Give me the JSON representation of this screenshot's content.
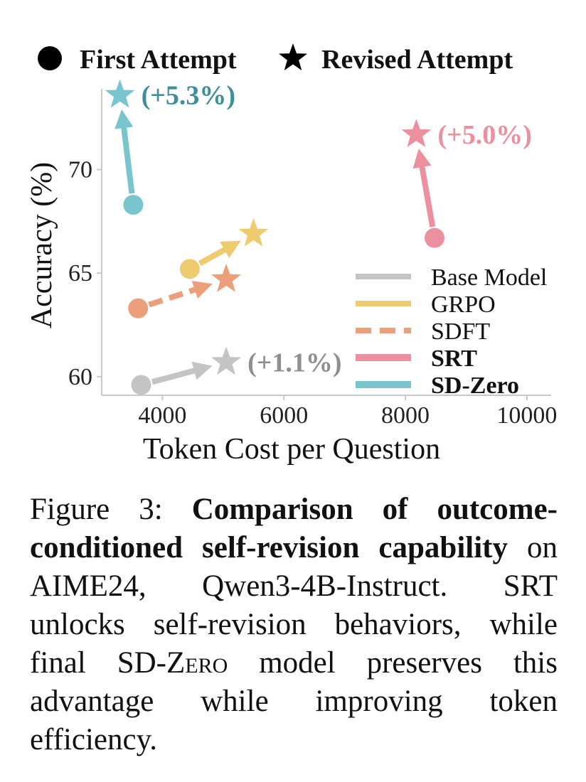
{
  "chart_data": {
    "type": "scatter",
    "xlabel": "Token Cost per Question",
    "ylabel": "Accuracy (%)",
    "xlim": [
      3000,
      10400
    ],
    "ylim": [
      59.1,
      73.9
    ],
    "xticks": [
      4000,
      6000,
      8000,
      10000
    ],
    "yticks": [
      60,
      65,
      70
    ],
    "xtick_labels": [
      "4000",
      "6000",
      "8000",
      "10000"
    ],
    "ytick_labels": [
      "60",
      "65",
      "70"
    ],
    "grid": false,
    "marker_legend": [
      {
        "marker": "circle",
        "label": "First Attempt"
      },
      {
        "marker": "star",
        "label": "Revised Attempt"
      }
    ],
    "legend_position": "bottom-right",
    "series": [
      {
        "name": "Base Model",
        "color": "#c4c4c4",
        "line_style": "solid",
        "bold": false,
        "first": {
          "x": 3650,
          "y": 59.6
        },
        "revised": {
          "x": 5050,
          "y": 60.7
        },
        "annotation": "(+1.1%)"
      },
      {
        "name": "GRPO",
        "color": "#eecb6e",
        "line_style": "solid",
        "bold": false,
        "first": {
          "x": 4450,
          "y": 65.2
        },
        "revised": {
          "x": 5500,
          "y": 66.9
        },
        "annotation": ""
      },
      {
        "name": "SDFT",
        "color": "#eba07b",
        "line_style": "dashed",
        "bold": false,
        "first": {
          "x": 3600,
          "y": 63.3
        },
        "revised": {
          "x": 5050,
          "y": 64.7
        },
        "annotation": ""
      },
      {
        "name": "SRT",
        "color": "#ec90a0",
        "line_style": "solid",
        "bold": true,
        "first": {
          "x": 8480,
          "y": 66.7
        },
        "revised": {
          "x": 8180,
          "y": 71.7
        },
        "annotation": "(+5.0%)"
      },
      {
        "name": "SD-Zero",
        "color": "#78c5cd",
        "line_style": "solid",
        "bold": true,
        "first": {
          "x": 3520,
          "y": 68.3
        },
        "revised": {
          "x": 3300,
          "y": 73.6
        },
        "annotation": "(+5.3%)"
      }
    ]
  },
  "annotation_colors": {
    "Base Model": "#8f8f8f",
    "SRT": "#ec90a0",
    "SD-Zero": "#3f8f9b"
  },
  "caption": {
    "figure_label": "Figure 3:",
    "title_bold": "Comparison of outcome-conditioned self-revision capability",
    "text_1": " on AIME24, Qwen3-4B-Instruct. SRT unlocks self-revision behaviors, while final ",
    "smallcaps_name": "SD-Zero",
    "text_2": " model preserves this advantage while improving token efficiency."
  }
}
